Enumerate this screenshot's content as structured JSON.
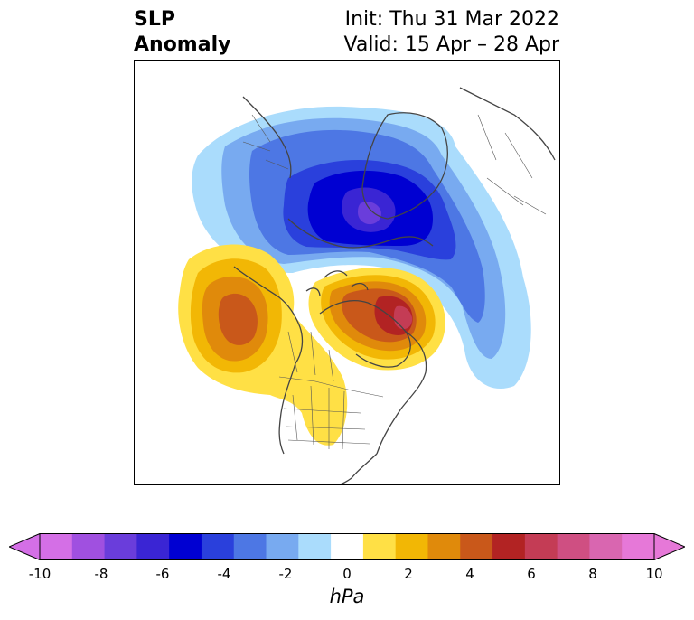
{
  "header": {
    "title_line1": "SLP",
    "title_line2": "Anomaly",
    "init_line": "Init: Thu 31 Mar 2022",
    "valid_line": "Valid: 15 Apr – 28 Apr"
  },
  "map": {
    "region": "North America / Arctic",
    "colors": {
      "coast": "#444444",
      "frame": "#000000"
    }
  },
  "colorbar": {
    "units": "hPa",
    "tick_labels": [
      "-10",
      "-8",
      "-6",
      "-4",
      "-2",
      "0",
      "2",
      "4",
      "6",
      "8",
      "10"
    ],
    "levels": [
      -10,
      -9,
      -8,
      -7,
      -6,
      -5,
      -4,
      -3,
      -2,
      -1,
      1,
      2,
      3,
      4,
      5,
      6,
      7,
      8,
      9,
      10
    ],
    "colors": [
      "#d46fe6",
      "#a050e0",
      "#6a3ddb",
      "#3a25d4",
      "#0000d2",
      "#2a40dc",
      "#4d77e4",
      "#78aaf0",
      "#aadcfc",
      "#ffffff",
      "#ffe045",
      "#f2b705",
      "#e08a0b",
      "#c9581a",
      "#b22323",
      "#c43c55",
      "#cf4f82",
      "#d966b0",
      "#e678d8"
    ],
    "extend": "both"
  }
}
